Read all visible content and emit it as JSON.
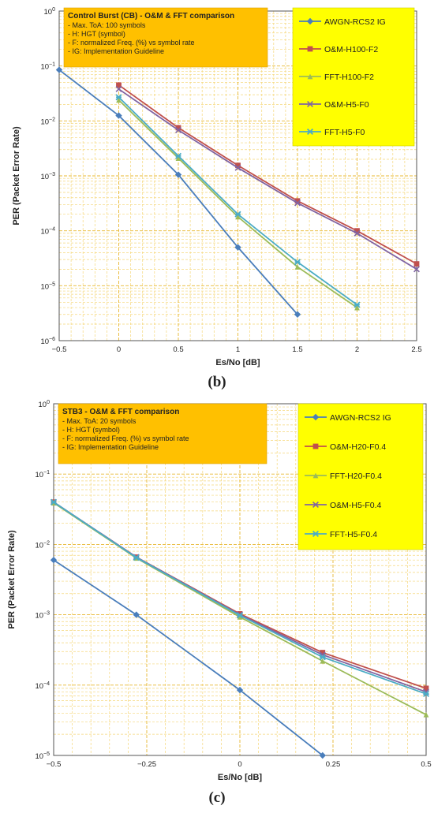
{
  "chart_data": [
    {
      "type": "line",
      "label": "(b)",
      "annotation": {
        "title": "Control Burst (CB) - O&M & FFT comparison",
        "lines": [
          "- Max. ToA: 100 symbols",
          "- H: HGT (symbol)",
          "- F: normalized Freq. (%) vs symbol rate",
          "- IG: Implementation Guideline"
        ]
      },
      "xlabel": "Es/No [dB]",
      "ylabel": "PER (Packet Error Rate)",
      "xlim": [
        -0.5,
        2.5
      ],
      "ylim": [
        1e-06,
        1
      ],
      "yscale": "log",
      "xticks": [
        "−0.5",
        "0",
        "0.5",
        "1",
        "1.5",
        "2",
        "2.5"
      ],
      "grid": true,
      "legend_position": "top-right",
      "series": [
        {
          "name": "AWGN-RCS2 IG",
          "color": "#4a7ebb",
          "marker": "diamond",
          "x": [
            -0.5,
            0,
            0.5,
            1,
            1.5
          ],
          "y": [
            0.085,
            0.0125,
            0.00105,
            5e-05,
            3e-06
          ]
        },
        {
          "name": "O&M-H100-F2",
          "color": "#c0504d",
          "marker": "square",
          "x": [
            0,
            0.5,
            1,
            1.5,
            2,
            2.5
          ],
          "y": [
            0.045,
            0.0075,
            0.00155,
            0.00035,
            0.0001,
            2.5e-05
          ]
        },
        {
          "name": "FFT-H100-F2",
          "color": "#9bbb59",
          "marker": "triangle",
          "x": [
            0,
            0.5,
            1,
            1.5,
            2
          ],
          "y": [
            0.024,
            0.0021,
            0.00018,
            2.2e-05,
            4e-06
          ]
        },
        {
          "name": "O&M-H5-F0",
          "color": "#8064a2",
          "marker": "x",
          "x": [
            0,
            0.5,
            1,
            1.5,
            2,
            2.5
          ],
          "y": [
            0.038,
            0.0068,
            0.0014,
            0.00032,
            9e-05,
            2e-05
          ]
        },
        {
          "name": "FFT-H5-F0",
          "color": "#4bacc6",
          "marker": "asterisk",
          "x": [
            0,
            0.5,
            1,
            1.5,
            2
          ],
          "y": [
            0.027,
            0.0023,
            0.0002,
            2.7e-05,
            4.5e-06
          ]
        }
      ]
    },
    {
      "type": "line",
      "label": "(c)",
      "annotation": {
        "title": "STB3 - O&M & FFT comparison",
        "lines": [
          "- Max. ToA: 20 symbols",
          "- H: HGT (symbol)",
          "- F: normalized Freq. (%) vs symbol rate",
          "- IG: Implementation Guideline"
        ]
      },
      "xlabel": "Es/No [dB]",
      "ylabel": "PER (Packet Error Rate)",
      "xlim": [
        -0.5,
        0.5
      ],
      "ylim": [
        1e-05,
        1
      ],
      "yscale": "log",
      "xticks": [
        "−0.5",
        "−0.25",
        "0",
        "0.25",
        "0.5"
      ],
      "grid": true,
      "legend_position": "top-right",
      "series": [
        {
          "name": "AWGN-RCS2 IG",
          "color": "#4a7ebb",
          "marker": "diamond",
          "x": [
            -0.5,
            -0.278,
            0,
            0.222
          ],
          "y": [
            0.006,
            0.001,
            8.5e-05,
            1e-05
          ]
        },
        {
          "name": "O&M-H20-F0.4",
          "color": "#c0504d",
          "marker": "square",
          "x": [
            -0.5,
            -0.278,
            0,
            0.222,
            0.5
          ],
          "y": [
            0.04,
            0.0066,
            0.00103,
            0.00029,
            9e-05
          ]
        },
        {
          "name": "FFT-H20-F0.4",
          "color": "#9bbb59",
          "marker": "triangle",
          "x": [
            -0.5,
            -0.278,
            0,
            0.222,
            0.5
          ],
          "y": [
            0.039,
            0.0064,
            0.00093,
            0.00022,
            3.8e-05
          ]
        },
        {
          "name": "O&M-H5-F0.4",
          "color": "#8064a2",
          "marker": "x",
          "x": [
            -0.5,
            -0.278,
            0,
            0.222,
            0.5
          ],
          "y": [
            0.04,
            0.0066,
            0.001,
            0.00027,
            8e-05
          ]
        },
        {
          "name": "FFT-H5-F0.4",
          "color": "#4bacc6",
          "marker": "asterisk",
          "x": [
            -0.5,
            -0.278,
            0,
            0.222,
            0.5
          ],
          "y": [
            0.04,
            0.0065,
            0.00098,
            0.00025,
            7.5e-05
          ]
        }
      ]
    }
  ]
}
